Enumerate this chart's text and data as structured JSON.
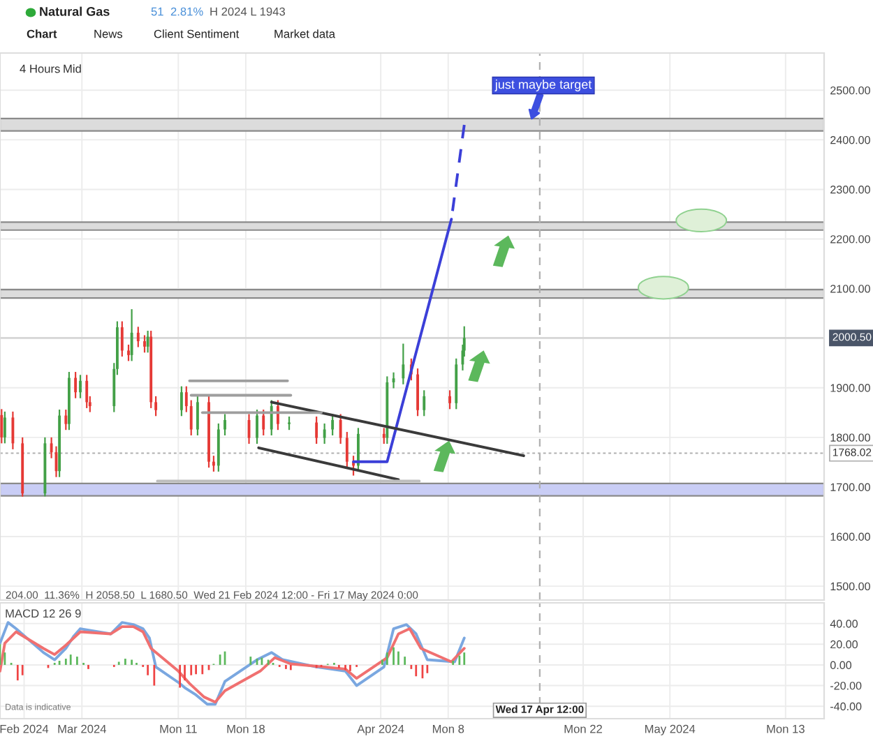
{
  "chart_data": [
    {
      "type": "candlestick",
      "title": "Natural Gas",
      "x": [
        "2024-02-21T16:00",
        "2024-02-22T00:00",
        "2024-02-22T20:00",
        "2024-02-23T20:00",
        "2024-02-26T04:00",
        "2024-02-26T20:00",
        "2024-02-27T08:00",
        "2024-02-27T16:00",
        "2024-02-28T08:00",
        "2024-02-28T16:00",
        "2024-02-29T08:00",
        "2024-02-29T20:00",
        "2024-03-01T12:00",
        "2024-03-01T20:00",
        "2024-03-04T08:00",
        "2024-03-04T16:00",
        "2024-03-05T04:00",
        "2024-03-05T20:00",
        "2024-03-06T04:00",
        "2024-03-06T20:00",
        "2024-03-07T12:00",
        "2024-03-07T20:00",
        "2024-03-08T04:00",
        "2024-03-08T16:00",
        "2024-03-11T08:00",
        "2024-03-11T20:00",
        "2024-03-12T08:00",
        "2024-03-13T00:00",
        "2024-03-14T04:00",
        "2024-03-14T16:00",
        "2024-03-15T04:00",
        "2024-03-15T20:00",
        "2024-03-18T08:00",
        "2024-03-19T04:00",
        "2024-03-19T20:00",
        "2024-03-20T16:00",
        "2024-03-21T08:00",
        "2024-03-22T12:00",
        "2024-03-25T08:00",
        "2024-03-26T04:00",
        "2024-03-27T00:00",
        "2024-03-27T20:00",
        "2024-03-28T12:00",
        "2024-03-29T04:00",
        "2024-03-29T16:00",
        "2024-04-01T08:00",
        "2024-04-01T16:00",
        "2024-04-02T08:00",
        "2024-04-03T08:00",
        "2024-04-04T04:00",
        "2024-04-04T20:00",
        "2024-04-05T12:00",
        "2024-04-08T04:00",
        "2024-04-08T20:00",
        "2024-04-09T12:00",
        "2024-04-09T16:00"
      ],
      "ohlc": [
        [
          1845,
          1857,
          1788,
          1800
        ],
        [
          1800,
          1852,
          1788,
          1840
        ],
        [
          1840,
          1852,
          1776,
          1788
        ],
        [
          1788,
          1800,
          1680.5,
          1687
        ],
        [
          1687,
          1800,
          1681,
          1788
        ],
        [
          1788,
          1800,
          1758,
          1770
        ],
        [
          1770,
          1782,
          1720,
          1732
        ],
        [
          1732,
          1856,
          1720,
          1844
        ],
        [
          1844,
          1856,
          1815,
          1827
        ],
        [
          1827,
          1932,
          1815,
          1920
        ],
        [
          1920,
          1932,
          1879,
          1891
        ],
        [
          1891,
          1926,
          1879,
          1914
        ],
        [
          1914,
          1926,
          1859,
          1871
        ],
        [
          1871,
          1883,
          1851,
          1863
        ],
        [
          1863,
          1950,
          1851,
          1938
        ],
        [
          1938,
          2034,
          1926,
          2022
        ],
        [
          2022,
          2034,
          1963,
          1975
        ],
        [
          1975,
          1987,
          1954,
          1966
        ],
        [
          1966,
          2058.5,
          1954,
          2011
        ],
        [
          2011,
          2023,
          1982,
          1994
        ],
        [
          1994,
          2006,
          1971,
          1983
        ],
        [
          1983,
          2015,
          1971,
          2003
        ],
        [
          2003,
          2015,
          1859,
          1871
        ],
        [
          1871,
          1883,
          1843,
          1855
        ],
        [
          1855,
          1903,
          1843,
          1891
        ],
        [
          1891,
          1903,
          1851,
          1863
        ],
        [
          1863,
          1875,
          1804,
          1816
        ],
        [
          1816,
          1883,
          1804,
          1871
        ],
        [
          1871,
          1883,
          1739,
          1751
        ],
        [
          1751,
          1763,
          1731,
          1743
        ],
        [
          1743,
          1828,
          1731,
          1816
        ],
        [
          1816,
          1847,
          1804,
          1835
        ],
        [
          1835,
          1847,
          1787,
          1799
        ],
        [
          1799,
          1856,
          1787,
          1844
        ],
        [
          1844,
          1856,
          1804,
          1816
        ],
        [
          1816,
          1875,
          1804,
          1863
        ],
        [
          1863,
          1875,
          1815,
          1827
        ],
        [
          1827,
          1842,
          1815,
          1830
        ],
        [
          1830,
          1842,
          1787,
          1799
        ],
        [
          1799,
          1828,
          1787,
          1816
        ],
        [
          1816,
          1847,
          1804,
          1835
        ],
        [
          1835,
          1847,
          1787,
          1799
        ],
        [
          1799,
          1811,
          1739,
          1751
        ],
        [
          1751,
          1763,
          1723,
          1743
        ],
        [
          1743,
          1819,
          1731,
          1807
        ],
        [
          1807,
          1819,
          1787,
          1799
        ],
        [
          1799,
          1923,
          1787,
          1911
        ],
        [
          1911,
          1931,
          1899,
          1919
        ],
        [
          1919,
          1989,
          1907,
          1947
        ],
        [
          1947,
          1959,
          1915,
          1927
        ],
        [
          1927,
          1939,
          1843,
          1855
        ],
        [
          1855,
          1895,
          1843,
          1883
        ],
        [
          1883,
          1895,
          1857,
          1869
        ],
        [
          1869,
          1959,
          1857,
          1947
        ],
        [
          1947,
          1987,
          1935,
          1975
        ],
        [
          1975,
          2024,
          1963,
          2000.5
        ]
      ],
      "colors": [
        "#e53935",
        "#43a047",
        "#e53935",
        "#e53935",
        "#43a047",
        "#e53935",
        "#e53935",
        "#43a047",
        "#e53935",
        "#43a047",
        "#e53935",
        "#43a047",
        "#e53935",
        "#e53935",
        "#43a047",
        "#43a047",
        "#e53935",
        "#e53935",
        "#43a047",
        "#e53935",
        "#e53935",
        "#43a047",
        "#e53935",
        "#e53935",
        "#43a047",
        "#e53935",
        "#e53935",
        "#43a047",
        "#e53935",
        "#e53935",
        "#43a047",
        "#43a047",
        "#e53935",
        "#43a047",
        "#e53935",
        "#43a047",
        "#e53935",
        "#43a047",
        "#e53935",
        "#43a047",
        "#43a047",
        "#e53935",
        "#e53935",
        "#e53935",
        "#43a047",
        "#e53935",
        "#43a047",
        "#43a047",
        "#43a047",
        "#e53935",
        "#e53935",
        "#43a047",
        "#e53935",
        "#43a047",
        "#43a047",
        "#43a047"
      ],
      "series": [
        {
          "type": "line",
          "color": "#3b3fd8",
          "line_style": "solid",
          "x": [
            "2024-03-29T04:00",
            "2024-04-01T16:00",
            "2024-04-08T08:00"
          ],
          "values": [
            1751,
            1751,
            2240
          ]
        },
        {
          "type": "line",
          "color": "#3b3fd8",
          "line_style": "dashed",
          "x": [
            "2024-04-08T08:00",
            "2024-04-09T16:00"
          ],
          "values": [
            2240,
            2430
          ]
        },
        {
          "type": "line",
          "color": "#3a3a3a",
          "line_style": "solid",
          "x": [
            "2024-03-20T16:00",
            "2024-04-15T20:00"
          ],
          "values": [
            1871,
            1763
          ]
        },
        {
          "type": "line",
          "color": "#3a3a3a",
          "line_style": "solid",
          "x": [
            "2024-03-19T08:00",
            "2024-04-02T20:00"
          ],
          "values": [
            1779,
            1715
          ]
        },
        {
          "type": "line",
          "color": "#9e9e9e",
          "line_style": "solid",
          "x": [
            "2024-03-12T04:00",
            "2024-03-22T08:00"
          ],
          "values": [
            1914,
            1914
          ]
        },
        {
          "type": "line",
          "color": "#9e9e9e",
          "line_style": "solid",
          "x": [
            "2024-03-12T08:00",
            "2024-03-22T16:00"
          ],
          "values": [
            1885,
            1885
          ]
        },
        {
          "type": "line",
          "color": "#9e9e9e",
          "line_style": "solid",
          "x": [
            "2024-03-13T12:00",
            "2024-03-25T20:00"
          ],
          "values": [
            1850,
            1850
          ]
        },
        {
          "type": "line",
          "color": "#bdbdbd",
          "line_style": "solid",
          "x": [
            "2024-03-08T20:00",
            "2024-04-05T00:00"
          ],
          "values": [
            1712,
            1712
          ]
        }
      ],
      "bands": [
        {
          "axis": "y",
          "from": 2418,
          "to": 2443,
          "label": null,
          "color": "#dcdcdc"
        },
        {
          "axis": "y",
          "from": 2218,
          "to": 2234,
          "label": null,
          "color": "#dcdcdc"
        },
        {
          "axis": "y",
          "from": 2081,
          "to": 2098,
          "label": null,
          "color": "#dcdcdc"
        },
        {
          "axis": "y",
          "from": 1682,
          "to": 1707,
          "label": null,
          "color": "#c9cdf5"
        }
      ],
      "ref_lines": [
        {
          "axis": "y",
          "value": 2000.5,
          "label": "2000.50",
          "color": "#d6d6d6",
          "line_style": "solid"
        },
        {
          "axis": "y",
          "value": 1768.02,
          "label": "1768.02",
          "color": "#b0b0b0",
          "line_style": "dotted"
        },
        {
          "axis": "x",
          "value": "2024-04-17T12:00",
          "label": null,
          "color": "#b0b0b0",
          "line_style": "dashed"
        }
      ],
      "annotations": [
        "51",
        "2.81%",
        "H 2024 L 1943",
        "Chart",
        "News",
        "Client Sentiment",
        "Market data",
        "4 Hours",
        "Mid",
        "204.00  11.36%  H 2058.50  L 1680.50  Wed 21 Feb 2024 12:00 - Fri 17 May 2024 0:00",
        {
          "text": "just maybe target",
          "x": "2024-04-16T16:00",
          "y": 2443
        }
      ],
      "xlim": [
        "2024-02-21T12:00",
        "2024-05-17T00:00"
      ],
      "ylim": [
        1472,
        2575
      ],
      "xticks": [
        {
          "value": "2024-03-01",
          "label": null
        },
        {
          "value": "2024-03-11",
          "label": null
        },
        {
          "value": "2024-03-18",
          "label": null
        },
        {
          "value": "2024-04-01",
          "label": null
        },
        {
          "value": "2024-04-08",
          "label": null
        },
        {
          "value": "2024-04-22",
          "label": null
        },
        {
          "value": "2024-05-01",
          "label": null
        },
        {
          "value": "2024-05-13",
          "label": null
        }
      ],
      "yticks": [
        {
          "value": 1500,
          "label": "1500.00"
        },
        {
          "value": 1600,
          "label": "1600.00"
        },
        {
          "value": 1700,
          "label": "1700.00"
        },
        {
          "value": 1800,
          "label": "1800.00"
        },
        {
          "value": 1900,
          "label": "1900.00"
        },
        {
          "value": 2000,
          "label": null
        },
        {
          "value": 2100,
          "label": "2100.00"
        },
        {
          "value": 2200,
          "label": "2200.00"
        },
        {
          "value": 2300,
          "label": "2300.00"
        },
        {
          "value": 2400,
          "label": "2400.00"
        },
        {
          "value": 2500,
          "label": "2500.00"
        }
      ],
      "tick_labels": "y",
      "grid": true,
      "legend": false
    },
    {
      "type": "bar",
      "title": "MACD 12 26 9",
      "series": [
        {
          "type": "bar",
          "color": "#5cb85c",
          "x": [
            "2024-02-21T12:00",
            "2024-02-22T00:00",
            "2024-02-22T16:00",
            "2024-02-27T04:00",
            "2024-02-27T16:00",
            "2024-02-28T08:00",
            "2024-02-28T20:00",
            "2024-02-29T12:00",
            "2024-03-01T04:00",
            "2024-03-04T20:00",
            "2024-03-05T12:00",
            "2024-03-06T04:00",
            "2024-03-06T16:00",
            "2024-03-14T16:00",
            "2024-03-15T08:00",
            "2024-03-15T20:00",
            "2024-03-18T12:00",
            "2024-03-19T04:00",
            "2024-03-19T16:00",
            "2024-03-20T08:00",
            "2024-03-20T20:00",
            "2024-03-26T12:00",
            "2024-03-27T04:00",
            "2024-04-01T04:00",
            "2024-04-01T16:00",
            "2024-04-02T08:00",
            "2024-04-02T20:00",
            "2024-04-03T12:00",
            "2024-04-08T12:00",
            "2024-04-09T04:00",
            "2024-04-09T16:00"
          ],
          "values": [
            20,
            12,
            2,
            2,
            4,
            6,
            10,
            8,
            2,
            3,
            6,
            5,
            2,
            1,
            10,
            13,
            8,
            6,
            7,
            5,
            2,
            1,
            2,
            5,
            12,
            17,
            13,
            8,
            4,
            9,
            12
          ]
        },
        {
          "type": "bar",
          "color": "#ef4444",
          "x": [
            "2024-02-23T08:00",
            "2024-02-23T20:00",
            "2024-02-26T12:00",
            "2024-03-01T16:00",
            "2024-03-04T08:00",
            "2024-03-07T08:00",
            "2024-03-07T20:00",
            "2024-03-08T12:00",
            "2024-03-11T04:00",
            "2024-03-11T16:00",
            "2024-03-12T08:00",
            "2024-03-12T20:00",
            "2024-03-13T12:00",
            "2024-03-14T04:00",
            "2024-03-21T12:00",
            "2024-03-22T04:00",
            "2024-03-22T16:00",
            "2024-03-25T08:00",
            "2024-03-25T20:00",
            "2024-03-27T16:00",
            "2024-03-28T08:00",
            "2024-03-28T20:00",
            "2024-03-29T12:00",
            "2024-04-04T04:00",
            "2024-04-04T16:00",
            "2024-04-05T08:00",
            "2024-04-05T20:00"
          ],
          "values": [
            -15,
            -10,
            -3,
            -4,
            -2,
            -2,
            -10,
            -20,
            -22,
            -15,
            -10,
            -9,
            -9,
            -5,
            -2,
            -4,
            -5,
            -3,
            -2,
            -3,
            -5,
            -6,
            -2,
            -4,
            -11,
            -13,
            -8
          ]
        },
        {
          "type": "line",
          "color": "#7aa7e0",
          "line_style": "solid",
          "x": [
            "2024-02-21T12:00",
            "2024-02-22T08:00",
            "2024-02-23T04:00",
            "2024-02-26T00:00",
            "2024-02-27T04:00",
            "2024-02-28T08:00",
            "2024-02-29T04:00",
            "2024-02-29T20:00",
            "2024-03-04T00:00",
            "2024-03-05T04:00",
            "2024-03-06T08:00",
            "2024-03-07T08:00",
            "2024-03-08T00:00",
            "2024-03-08T16:00",
            "2024-03-11T04:00",
            "2024-03-11T16:00",
            "2024-03-12T20:00",
            "2024-03-14T00:00",
            "2024-03-14T20:00",
            "2024-03-15T20:00",
            "2024-03-19T04:00",
            "2024-03-20T16:00",
            "2024-03-21T20:00",
            "2024-03-25T08:00",
            "2024-03-26T20:00",
            "2024-03-28T08:00",
            "2024-03-29T12:00",
            "2024-04-01T08:00",
            "2024-04-02T08:00",
            "2024-04-03T16:00",
            "2024-04-04T16:00",
            "2024-04-05T20:00",
            "2024-04-08T16:00",
            "2024-04-09T16:00"
          ],
          "values": [
            21,
            41,
            35,
            12,
            5,
            16,
            28,
            35,
            30,
            41,
            39,
            35,
            26,
            -2,
            -18,
            -22,
            -29,
            -38,
            -38,
            -16,
            5,
            12,
            5,
            -2,
            -4,
            -6,
            -20,
            -2,
            35,
            39,
            30,
            5,
            3,
            26
          ]
        },
        {
          "type": "line",
          "color": "#f07070",
          "line_style": "solid",
          "x": [
            "2024-02-21T12:00",
            "2024-02-22T00:00",
            "2024-02-23T04:00",
            "2024-02-26T00:00",
            "2024-02-27T04:00",
            "2024-02-28T08:00",
            "2024-02-29T20:00",
            "2024-03-04T00:00",
            "2024-03-05T04:00",
            "2024-03-06T08:00",
            "2024-03-07T08:00",
            "2024-03-08T04:00",
            "2024-03-11T00:00",
            "2024-03-12T04:00",
            "2024-03-13T16:00",
            "2024-03-14T20:00",
            "2024-03-15T20:00",
            "2024-03-19T12:00",
            "2024-03-21T00:00",
            "2024-03-22T16:00",
            "2024-03-26T04:00",
            "2024-03-28T08:00",
            "2024-03-29T12:00",
            "2024-04-01T16:00",
            "2024-04-02T20:00",
            "2024-04-04T00:00",
            "2024-04-05T04:00",
            "2024-04-08T08:00",
            "2024-04-09T16:00"
          ],
          "values": [
            -6,
            21,
            32,
            16,
            10,
            19,
            32,
            30,
            37,
            37,
            32,
            16,
            -6,
            -18,
            -31,
            -36,
            -25,
            -6,
            7,
            1,
            -2,
            -4,
            -13,
            7,
            30,
            35,
            16,
            3,
            16
          ]
        }
      ],
      "ref_lines": [
        {
          "axis": "x",
          "value": "2024-04-17T12:00",
          "label": "Wed 17 Apr 12:00",
          "color": "#b0b0b0",
          "line_style": "dashed"
        }
      ],
      "annotations": [
        "Data is indicative"
      ],
      "xlim": [
        "2024-02-21T12:00",
        "2024-05-17T00:00"
      ],
      "ylim": [
        -52,
        60
      ],
      "xticks": [
        {
          "value": "2024-02-24",
          "label": "Feb 2024"
        },
        {
          "value": "2024-03-01",
          "label": "Mar 2024"
        },
        {
          "value": "2024-03-11",
          "label": "Mon 11"
        },
        {
          "value": "2024-03-18",
          "label": "Mon 18"
        },
        {
          "value": "2024-04-01",
          "label": "Apr 2024"
        },
        {
          "value": "2024-04-08",
          "label": "Mon 8"
        },
        {
          "value": "2024-04-22",
          "label": "Mon 22"
        },
        {
          "value": "2024-05-01",
          "label": "May 2024"
        },
        {
          "value": "2024-05-13",
          "label": "Mon 13"
        }
      ],
      "yticks": [
        {
          "value": -40,
          "label": "-40.00"
        },
        {
          "value": -20,
          "label": "-20.00"
        },
        {
          "value": 0,
          "label": "0.00"
        },
        {
          "value": 20,
          "label": "20.00"
        },
        {
          "value": 40,
          "label": "40.00"
        }
      ],
      "grid": true,
      "legend": false
    }
  ]
}
